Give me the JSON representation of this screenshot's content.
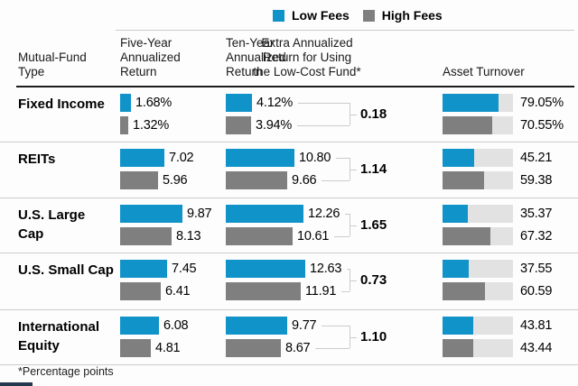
{
  "colors": {
    "low_fees_blue": "#0f93c8",
    "high_fees_gray": "#7f7f7f",
    "turnover_track": "#e2e2e2",
    "rule_light": "#cccccc",
    "rule_dark": "#1c1c1c"
  },
  "legend": [
    {
      "label": "Low Fees",
      "color": "#0f93c8"
    },
    {
      "label": "High Fees",
      "color": "#7f7f7f"
    }
  ],
  "columns": {
    "fund_type": "Mutual-Fund\nType",
    "five_year": "Five-Year\nAnnualized\nReturn",
    "ten_year": "Ten-Year\nAnnualized\nReturn",
    "extra_return": "Extra Annualized\nReturn for Using\nthe Low-Cost Fund*",
    "asset_turnover": "Asset Turnover"
  },
  "footnote": "*Percentage points",
  "chart_data": {
    "type": "bar",
    "orientation": "horizontal",
    "legend": [
      "Low Fees",
      "High Fees"
    ],
    "legend_position": "top",
    "categories": [
      "Fixed Income",
      "REITs",
      "U.S. Large Cap",
      "U.S. Small Cap",
      "International Equity"
    ],
    "columns": [
      "Five-Year Annualized Return",
      "Ten-Year Annualized Return",
      "Extra Annualized Return for Using the Low-Cost Fund*",
      "Asset Turnover"
    ],
    "units": "percent",
    "turnover_axis_max": 100,
    "rows": [
      {
        "category": "Fixed Income",
        "five_year": {
          "low": 1.68,
          "high": 1.32,
          "low_label": "1.68%",
          "high_label": "1.32%"
        },
        "ten_year": {
          "low": 4.12,
          "high": 3.94,
          "low_label": "4.12%",
          "high_label": "3.94%"
        },
        "extra": "0.18",
        "asset_turnover": {
          "low": 79.05,
          "high": 70.55,
          "low_label": "79.05%",
          "high_label": "70.55%"
        }
      },
      {
        "category": "REITs",
        "five_year": {
          "low": 7.02,
          "high": 5.96,
          "low_label": "7.02",
          "high_label": "5.96"
        },
        "ten_year": {
          "low": 10.8,
          "high": 9.66,
          "low_label": "10.80",
          "high_label": "9.66"
        },
        "extra": "1.14",
        "asset_turnover": {
          "low": 45.21,
          "high": 59.38,
          "low_label": "45.21",
          "high_label": "59.38"
        }
      },
      {
        "category": "U.S. Large Cap",
        "five_year": {
          "low": 9.87,
          "high": 8.13,
          "low_label": "9.87",
          "high_label": "8.13"
        },
        "ten_year": {
          "low": 12.26,
          "high": 10.61,
          "low_label": "12.26",
          "high_label": "10.61"
        },
        "extra": "1.65",
        "asset_turnover": {
          "low": 35.37,
          "high": 67.32,
          "low_label": "35.37",
          "high_label": "67.32"
        }
      },
      {
        "category": "U.S. Small Cap",
        "five_year": {
          "low": 7.45,
          "high": 6.41,
          "low_label": "7.45",
          "high_label": "6.41"
        },
        "ten_year": {
          "low": 12.63,
          "high": 11.91,
          "low_label": "12.63",
          "high_label": "11.91"
        },
        "extra": "0.73",
        "asset_turnover": {
          "low": 37.55,
          "high": 60.59,
          "low_label": "37.55",
          "high_label": "60.59"
        }
      },
      {
        "category": "International Equity",
        "five_year": {
          "low": 6.08,
          "high": 4.81,
          "low_label": "6.08",
          "high_label": "4.81"
        },
        "ten_year": {
          "low": 9.77,
          "high": 8.67,
          "low_label": "9.77",
          "high_label": "8.67"
        },
        "extra": "1.10",
        "asset_turnover": {
          "low": 43.81,
          "high": 43.44,
          "low_label": "43.81",
          "high_label": "43.44"
        }
      }
    ]
  }
}
